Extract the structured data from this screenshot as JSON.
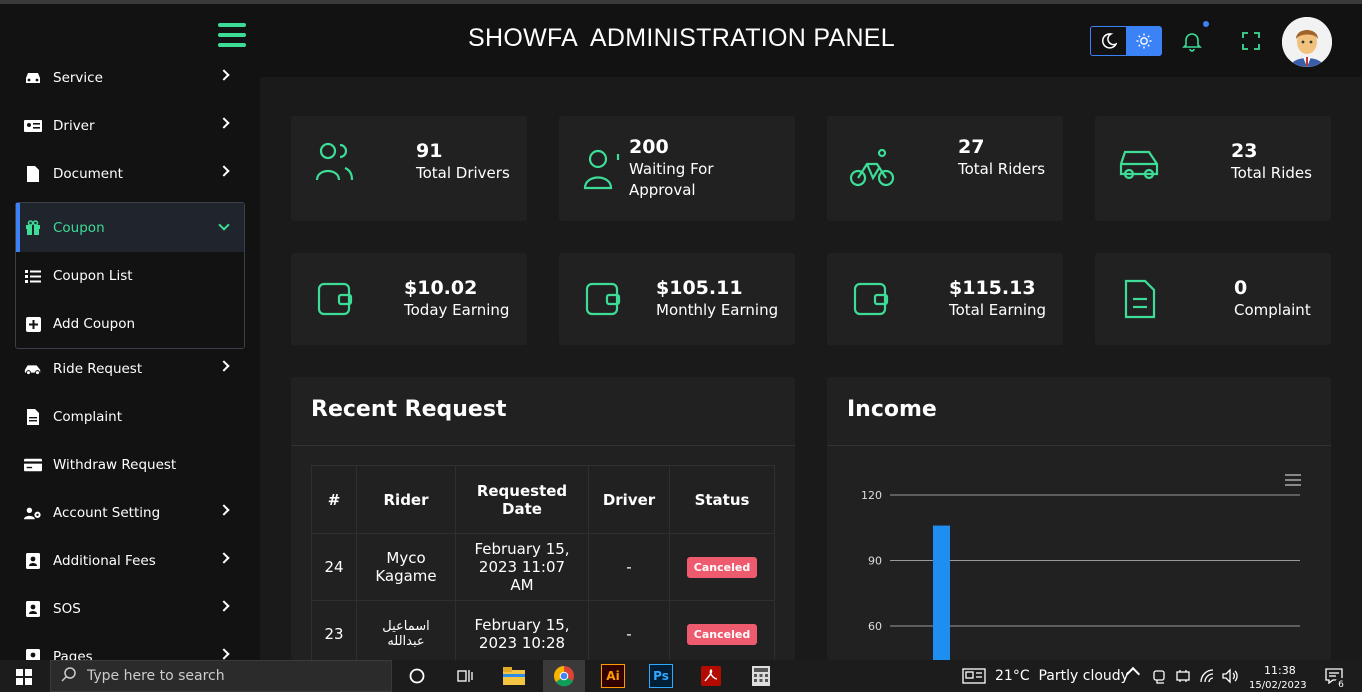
{
  "header": {
    "title": "SHOWFA  ADMINISTRATION PANEL"
  },
  "sidebar": {
    "items": [
      {
        "label": "Service"
      },
      {
        "label": "Driver"
      },
      {
        "label": "Document"
      },
      {
        "label": "Coupon"
      },
      {
        "label": "Ride Request"
      },
      {
        "label": "Complaint"
      },
      {
        "label": "Withdraw Request"
      },
      {
        "label": "Account Setting"
      },
      {
        "label": "Additional Fees"
      },
      {
        "label": "SOS"
      },
      {
        "label": "Pages"
      }
    ],
    "coupon_sub": [
      {
        "label": "Coupon List"
      },
      {
        "label": "Add Coupon"
      }
    ]
  },
  "stats": [
    {
      "value": "91",
      "label": "Total Drivers",
      "icon": "users-icon"
    },
    {
      "value": "200",
      "label": "Waiting For Approval",
      "icon": "user-pending-icon"
    },
    {
      "value": "27",
      "label": "Total Riders",
      "icon": "bicycle-icon"
    },
    {
      "value": "23",
      "label": "Total Rides",
      "icon": "car-icon"
    },
    {
      "value": "$10.02",
      "label": "Today Earning",
      "icon": "wallet-icon"
    },
    {
      "value": "$105.11",
      "label": "Monthly Earning",
      "icon": "wallet-icon"
    },
    {
      "value": "$115.13",
      "label": "Total Earning",
      "icon": "wallet-icon"
    },
    {
      "value": "0",
      "label": "Complaint",
      "icon": "document-icon"
    }
  ],
  "recent": {
    "title": "Recent Request",
    "columns": [
      "#",
      "Rider",
      "Requested Date",
      "Driver",
      "Status"
    ],
    "rows": [
      {
        "id": "24",
        "rider": "Myco Kagame",
        "date": "February 15, 2023 11:07 AM",
        "driver": "-",
        "status": "Canceled"
      },
      {
        "id": "23",
        "rider": "اسماعيل عبدالله",
        "date": "February 15, 2023 10:28",
        "driver": "-",
        "status": "Canceled"
      }
    ]
  },
  "income": {
    "title": "Income",
    "chart_data": {
      "type": "bar",
      "title": "",
      "yticks": [
        120,
        90,
        60
      ],
      "values": [
        106
      ],
      "color": "#1e8ff0"
    }
  },
  "taskbar": {
    "search_placeholder": "Type here to search",
    "weather": "21°C  Partly cloudy",
    "time": "11:38",
    "date": "15/02/2023",
    "notif_count": "6",
    "apps": [
      "Ai",
      "Ps"
    ]
  },
  "colors": {
    "accent": "#3ddc97",
    "blue": "#3b82f6",
    "badge": "#ef5b6e"
  }
}
